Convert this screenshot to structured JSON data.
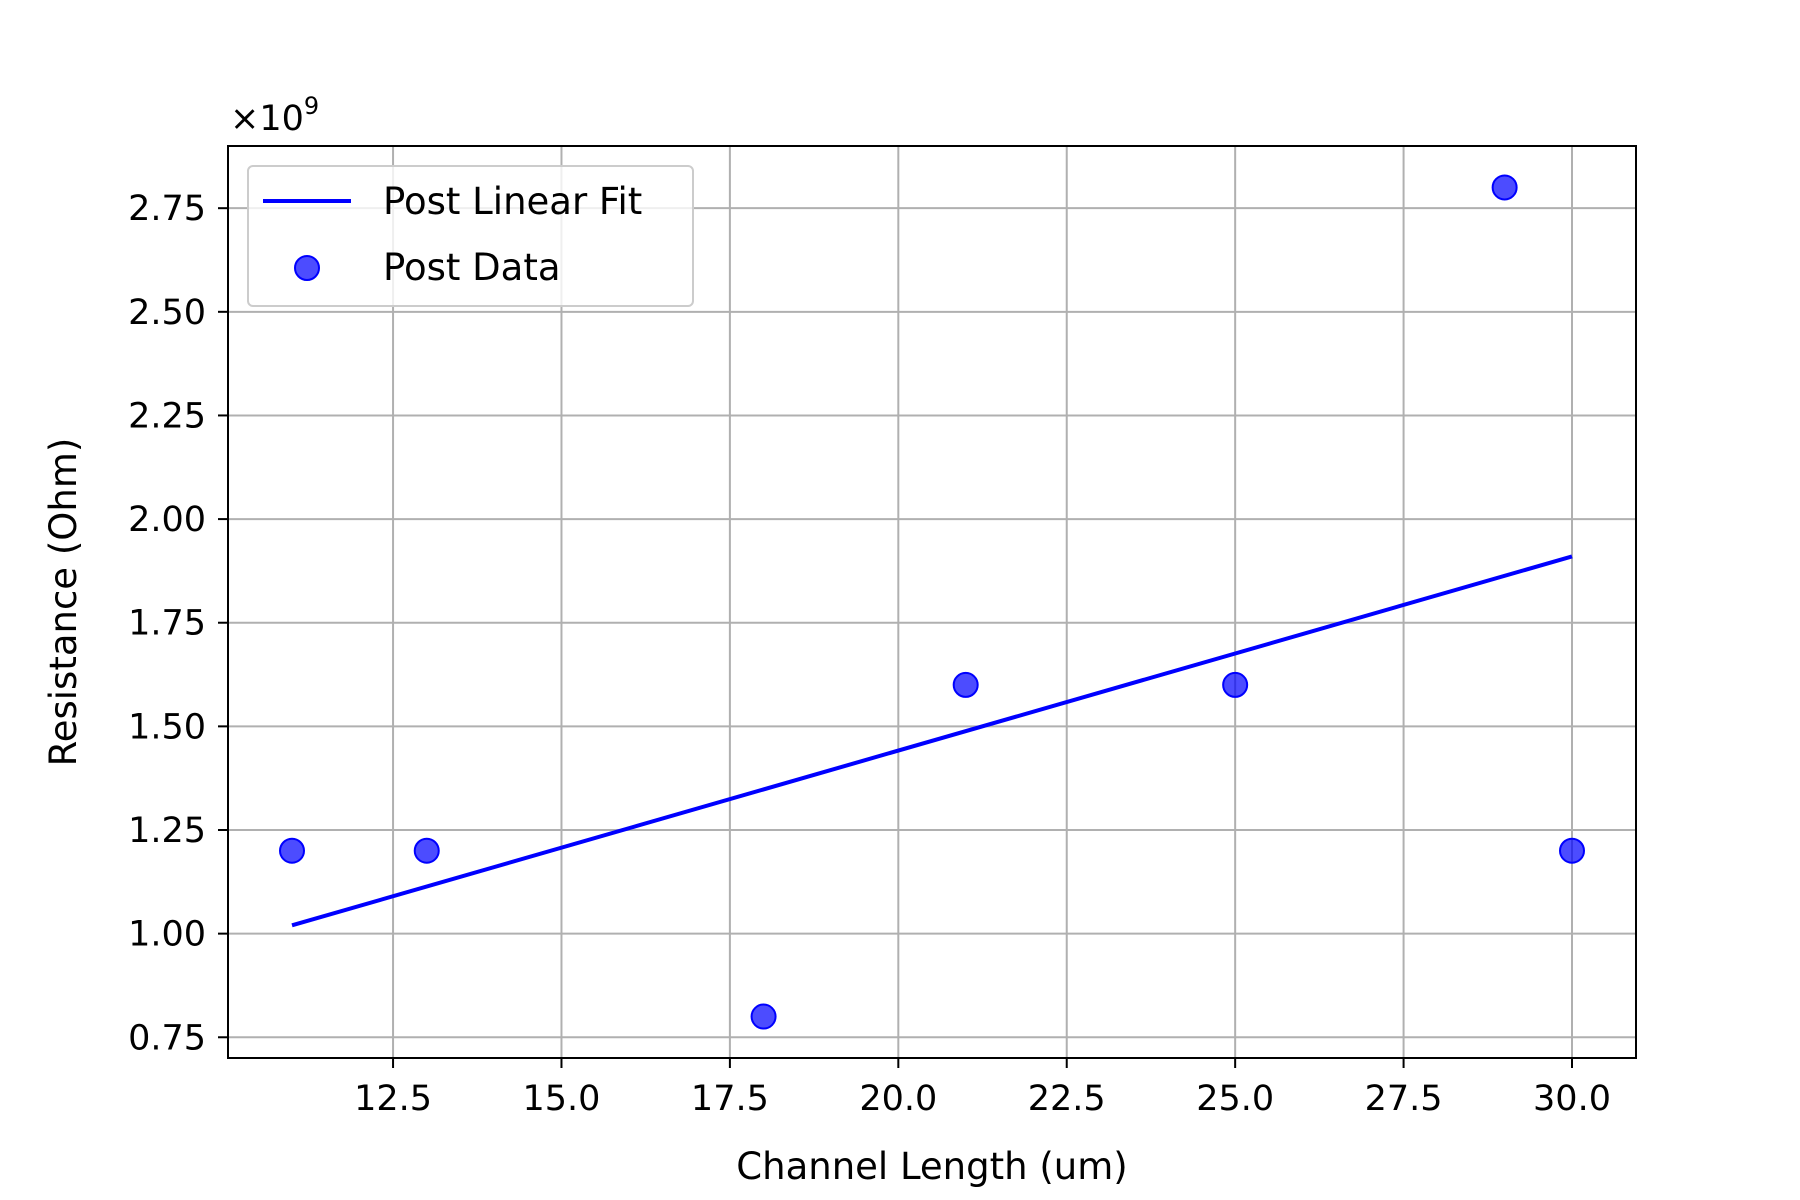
{
  "chart_data": {
    "type": "scatter",
    "xlabel": "Channel Length (um)",
    "ylabel": "Resistance (Ohm)",
    "y_offset_text": "×10",
    "y_offset_exponent": "9",
    "xlim": [
      10.05,
      30.95
    ],
    "ylim": [
      0.7,
      2.9
    ],
    "x_ticks": [
      12.5,
      15.0,
      17.5,
      20.0,
      22.5,
      25.0,
      27.5,
      30.0
    ],
    "x_tick_labels": [
      "12.5",
      "15.0",
      "17.5",
      "20.0",
      "22.5",
      "25.0",
      "27.5",
      "30.0"
    ],
    "y_ticks": [
      0.75,
      1.0,
      1.25,
      1.5,
      1.75,
      2.0,
      2.25,
      2.5,
      2.75
    ],
    "y_tick_labels": [
      "0.75",
      "1.00",
      "1.25",
      "1.50",
      "1.75",
      "2.00",
      "2.25",
      "2.50",
      "2.75"
    ],
    "grid": true,
    "legend_position": "top-left",
    "series": [
      {
        "name": "Post Linear Fit",
        "kind": "line",
        "color": "#0000ff",
        "x": [
          11,
          30
        ],
        "y": [
          1.02,
          1.91
        ]
      },
      {
        "name": "Post Data",
        "kind": "scatter",
        "color": "#0000ff",
        "x": [
          11,
          13,
          18,
          21,
          25,
          29,
          30
        ],
        "y": [
          1.2,
          1.2,
          0.8,
          1.6,
          1.6,
          2.8,
          1.2
        ]
      }
    ]
  }
}
